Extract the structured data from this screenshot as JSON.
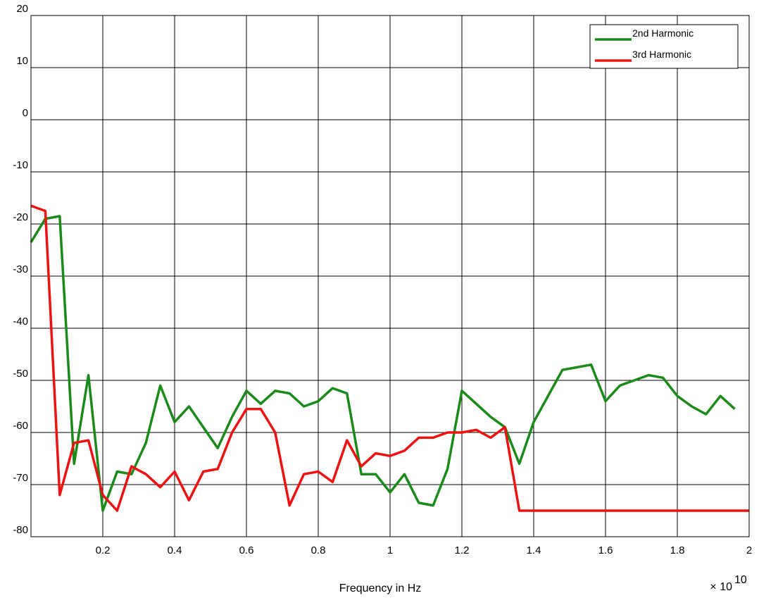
{
  "chart_data": {
    "type": "line",
    "title": "",
    "xlabel": "Frequency in Hz",
    "ylabel": "",
    "x_multiplier_label": "× 10",
    "x_multiplier_exponent": "10",
    "xlim": [
      0,
      2
    ],
    "ylim": [
      -80,
      20
    ],
    "x_ticks": [
      0.2,
      0.4,
      0.6,
      0.8,
      1,
      1.2,
      1.4,
      1.6,
      1.8,
      2
    ],
    "x_tick_labels": [
      "0.2",
      "0.4",
      "0.6",
      "0.8",
      "1",
      "1.2",
      "1.4",
      "1.6",
      "1.8",
      "2"
    ],
    "y_ticks": [
      20,
      10,
      0,
      -10,
      -20,
      -30,
      -40,
      -50,
      -60,
      -70,
      -80
    ],
    "y_tick_labels": [
      "20",
      "10",
      "0",
      "-10",
      "-20",
      "-30",
      "-40",
      "-50",
      "-60",
      "-70",
      "-80"
    ],
    "grid": true,
    "legend_position": "top-right",
    "series": [
      {
        "name": "2nd Harmonic",
        "color": "#1a8a1a",
        "points": [
          [
            0,
            -23.5
          ],
          [
            0.04,
            -19
          ],
          [
            0.08,
            -18.5
          ],
          [
            0.12,
            -66
          ],
          [
            0.16,
            -49
          ],
          [
            0.2,
            -75
          ],
          [
            0.24,
            -67.5
          ],
          [
            0.28,
            -68
          ],
          [
            0.32,
            -62
          ],
          [
            0.36,
            -51
          ],
          [
            0.4,
            -58
          ],
          [
            0.44,
            -55
          ],
          [
            0.48,
            -59
          ],
          [
            0.52,
            -63
          ],
          [
            0.56,
            -57
          ],
          [
            0.6,
            -52
          ],
          [
            0.64,
            -54.5
          ],
          [
            0.68,
            -52
          ],
          [
            0.72,
            -52.5
          ],
          [
            0.76,
            -55
          ],
          [
            0.8,
            -54
          ],
          [
            0.84,
            -51.5
          ],
          [
            0.88,
            -52.5
          ],
          [
            0.92,
            -68
          ],
          [
            0.96,
            -68
          ],
          [
            1.0,
            -71.5
          ],
          [
            1.04,
            -68
          ],
          [
            1.08,
            -73.5
          ],
          [
            1.12,
            -74
          ],
          [
            1.16,
            -67
          ],
          [
            1.2,
            -52
          ],
          [
            1.24,
            -54.5
          ],
          [
            1.28,
            -57
          ],
          [
            1.32,
            -59
          ],
          [
            1.36,
            -66
          ],
          [
            1.4,
            -58
          ],
          [
            1.44,
            -53
          ],
          [
            1.48,
            -48
          ],
          [
            1.52,
            -47.5
          ],
          [
            1.56,
            -47
          ],
          [
            1.6,
            -54
          ],
          [
            1.64,
            -51
          ],
          [
            1.68,
            -50
          ],
          [
            1.72,
            -49
          ],
          [
            1.76,
            -49.5
          ],
          [
            1.8,
            -53
          ],
          [
            1.84,
            -55
          ],
          [
            1.88,
            -56.5
          ],
          [
            1.92,
            -53
          ],
          [
            1.96,
            -55.5
          ]
        ]
      },
      {
        "name": "3rd Harmonic",
        "color": "#ee1111",
        "points": [
          [
            0,
            -16.5
          ],
          [
            0.04,
            -17.5
          ],
          [
            0.08,
            -72
          ],
          [
            0.12,
            -62
          ],
          [
            0.16,
            -61.5
          ],
          [
            0.2,
            -72
          ],
          [
            0.24,
            -75
          ],
          [
            0.28,
            -66.5
          ],
          [
            0.32,
            -68
          ],
          [
            0.36,
            -70.5
          ],
          [
            0.4,
            -67.5
          ],
          [
            0.44,
            -73
          ],
          [
            0.48,
            -67.5
          ],
          [
            0.52,
            -67
          ],
          [
            0.56,
            -60
          ],
          [
            0.6,
            -55.5
          ],
          [
            0.64,
            -55.5
          ],
          [
            0.68,
            -60
          ],
          [
            0.72,
            -74
          ],
          [
            0.76,
            -68
          ],
          [
            0.8,
            -67.5
          ],
          [
            0.84,
            -69.5
          ],
          [
            0.88,
            -61.5
          ],
          [
            0.92,
            -66.5
          ],
          [
            0.96,
            -64
          ],
          [
            1.0,
            -64.5
          ],
          [
            1.04,
            -63.5
          ],
          [
            1.08,
            -61
          ],
          [
            1.12,
            -61
          ],
          [
            1.16,
            -60
          ],
          [
            1.2,
            -60
          ],
          [
            1.24,
            -59.5
          ],
          [
            1.28,
            -61
          ],
          [
            1.32,
            -59
          ],
          [
            1.36,
            -75
          ],
          [
            1.4,
            -75
          ],
          [
            2.0,
            -75
          ]
        ]
      }
    ]
  }
}
